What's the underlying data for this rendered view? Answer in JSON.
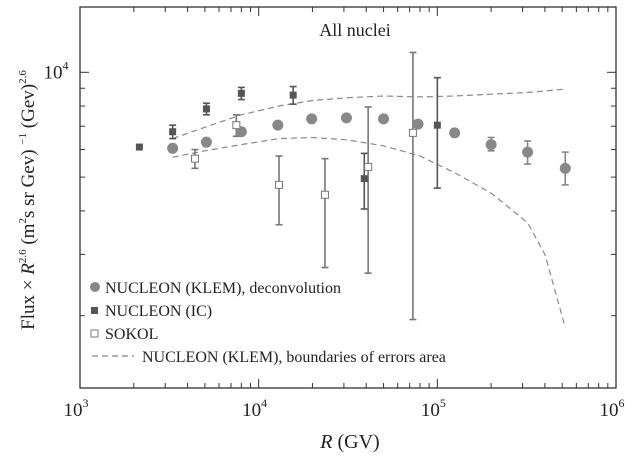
{
  "chart_data": {
    "type": "scatter",
    "title": "All nuclei",
    "xlabel": {
      "italic": "R",
      "rest": " (GV)"
    },
    "ylabel": "Flux × R^2.6 (m^2 s sr GeV)^-1 (GeV)^2.6",
    "ylabel_parts": {
      "a": "Flux × ",
      "b": "R",
      "c": "2.6",
      "d": " (m",
      "e": "2",
      "f": "s sr Gev) ",
      "g": "−1",
      "h": " (Gev)",
      "i": "2.6"
    },
    "x_scale": "log",
    "y_scale": "log",
    "xlim": [
      1000,
      1000000
    ],
    "ylim": [
      1240,
      15400
    ],
    "x_ticks": [
      {
        "value": 1000,
        "base": "10",
        "exp": "3"
      },
      {
        "value": 10000,
        "base": "10",
        "exp": "4"
      },
      {
        "value": 100000,
        "base": "10",
        "exp": "5"
      },
      {
        "value": 1000000,
        "base": "10",
        "exp": "6"
      }
    ],
    "y_ticks": [
      {
        "value": 10000,
        "base": "10",
        "exp": "4"
      }
    ],
    "grid": false,
    "legend_placement": "bottom-left",
    "series": [
      {
        "name": "NUCLEON (KLEM), deconvolution",
        "marker": "filled-circle",
        "color": "#888888",
        "points": [
          {
            "x": 3300,
            "y": 6050,
            "lo": 6050,
            "hi": 6050
          },
          {
            "x": 5100,
            "y": 6300,
            "lo": 6300,
            "hi": 6300
          },
          {
            "x": 8000,
            "y": 6750,
            "lo": 6750,
            "hi": 6750
          },
          {
            "x": 12800,
            "y": 7050,
            "lo": 7050,
            "hi": 7050
          },
          {
            "x": 19800,
            "y": 7350,
            "lo": 7350,
            "hi": 7350
          },
          {
            "x": 31000,
            "y": 7400,
            "lo": 7400,
            "hi": 7400
          },
          {
            "x": 50000,
            "y": 7350,
            "lo": 7350,
            "hi": 7350
          },
          {
            "x": 78000,
            "y": 7100,
            "lo": 7100,
            "hi": 7100
          },
          {
            "x": 125000,
            "y": 6700,
            "lo": 6600,
            "hi": 6850
          },
          {
            "x": 200000,
            "y": 6200,
            "lo": 5950,
            "hi": 6500
          },
          {
            "x": 320000,
            "y": 5900,
            "lo": 5450,
            "hi": 6350
          },
          {
            "x": 520000,
            "y": 5300,
            "lo": 4750,
            "hi": 5900
          }
        ]
      },
      {
        "name": "NUCLEON (IC)",
        "marker": "filled-square",
        "color": "#555555",
        "points": [
          {
            "x": 2150,
            "y": 6100,
            "lo": 6100,
            "hi": 6100
          },
          {
            "x": 3300,
            "y": 6750,
            "lo": 6450,
            "hi": 7050
          },
          {
            "x": 5100,
            "y": 7850,
            "lo": 7550,
            "hi": 8150
          },
          {
            "x": 8000,
            "y": 8700,
            "lo": 8350,
            "hi": 9050
          },
          {
            "x": 15600,
            "y": 8600,
            "lo": 8100,
            "hi": 9100
          },
          {
            "x": 39000,
            "y": 4950,
            "lo": 4050,
            "hi": 5850
          },
          {
            "x": 100000,
            "y": 7050,
            "lo": 4650,
            "hi": 9650
          }
        ]
      },
      {
        "name": "SOKOL",
        "marker": "open-square",
        "color": "#777777",
        "points": [
          {
            "x": 4400,
            "y": 5650,
            "lo": 5300,
            "hi": 6000
          },
          {
            "x": 7500,
            "y": 7050,
            "lo": 6550,
            "hi": 7550
          },
          {
            "x": 13000,
            "y": 4750,
            "lo": 3650,
            "hi": 5750
          },
          {
            "x": 23500,
            "y": 4450,
            "lo": 2750,
            "hi": 5650
          },
          {
            "x": 41000,
            "y": 5350,
            "lo": 2650,
            "hi": 7950
          },
          {
            "x": 73000,
            "y": 6700,
            "lo": 1950,
            "hi": 11400
          }
        ]
      }
    ],
    "boundaries": {
      "name": "NUCLEON (KLEM), boundaries of errors area",
      "style": "dashed",
      "color": "#888888",
      "upper": {
        "x": [
          3300,
          5000,
          8000,
          13000,
          20000,
          31000,
          50000,
          80000,
          125000,
          200000,
          320000,
          520000
        ],
        "y": [
          6450,
          6950,
          7550,
          8000,
          8300,
          8450,
          8550,
          8500,
          8550,
          8650,
          8750,
          8950
        ]
      },
      "lower": {
        "x": [
          3300,
          5000,
          8000,
          13000,
          20000,
          31000,
          50000,
          80000,
          125000,
          200000,
          320000,
          400000,
          520000
        ],
        "y": [
          5700,
          5950,
          6200,
          6450,
          6500,
          6400,
          6150,
          5750,
          5150,
          4500,
          3700,
          3000,
          1850
        ]
      }
    }
  }
}
